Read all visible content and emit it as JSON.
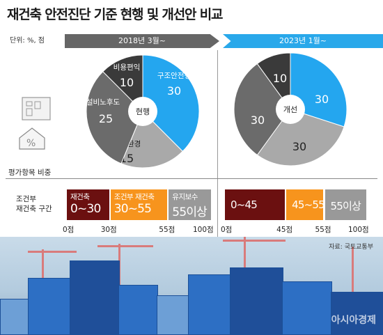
{
  "title": "재건축 안전진단 기준 현행 및 개선안 비교",
  "unit": "단위: %, 점",
  "period_before": "2018년 3월~",
  "period_after": "2023년 1월~",
  "side_labels": {
    "weight": "평가항목 비중",
    "zone_line1": "조건부",
    "zone_line2": "재건축 구간"
  },
  "source": "자료: 국토교통부",
  "watermark": "아시아경제",
  "colors": {
    "blue": "#24a6ef",
    "dark": "#3a3a3a",
    "mid": "#6b6b6b",
    "light": "#a9a9a9",
    "maroon": "#6b1010",
    "orange": "#f7941d",
    "gray": "#999999"
  },
  "chart_data": [
    {
      "type": "pie",
      "center_label": "현행",
      "slices": [
        {
          "name": "구조안전성",
          "value": 30,
          "color": "#24a6ef"
        },
        {
          "name": "주거환경",
          "value": 15,
          "color": "#a9a9a9"
        },
        {
          "name": "설비노후도",
          "value": 25,
          "color": "#6b6b6b"
        },
        {
          "name": "비용편익",
          "value": 10,
          "color": "#3a3a3a"
        }
      ]
    },
    {
      "type": "pie",
      "center_label": "개선",
      "slices": [
        {
          "name": "",
          "value": 30,
          "color": "#24a6ef"
        },
        {
          "name": "",
          "value": 30,
          "color": "#a9a9a9"
        },
        {
          "name": "",
          "value": 30,
          "color": "#6b6b6b"
        },
        {
          "name": "",
          "value": 10,
          "color": "#3a3a3a"
        }
      ]
    },
    {
      "type": "bar",
      "name": "현행 구간",
      "segments": [
        {
          "label": "재건축",
          "range": "0~30",
          "from": 0,
          "to": 30,
          "color": "#6b1010"
        },
        {
          "label": "조건부 재건축",
          "range": "30~55",
          "from": 30,
          "to": 55,
          "color": "#f7941d"
        },
        {
          "label": "유지보수",
          "range": "55이상",
          "from": 55,
          "to": 100,
          "color": "#999999"
        }
      ],
      "ticks": [
        "0점",
        "30점",
        "55점",
        "100점"
      ]
    },
    {
      "type": "bar",
      "name": "개선 구간",
      "segments": [
        {
          "label": "",
          "range": "0~45",
          "from": 0,
          "to": 45,
          "color": "#6b1010"
        },
        {
          "label": "",
          "range": "45~55",
          "from": 45,
          "to": 55,
          "color": "#f7941d"
        },
        {
          "label": "",
          "range": "55이상",
          "from": 55,
          "to": 100,
          "color": "#999999"
        }
      ],
      "ticks": [
        "0점",
        "45점",
        "55점",
        "100점"
      ]
    }
  ]
}
